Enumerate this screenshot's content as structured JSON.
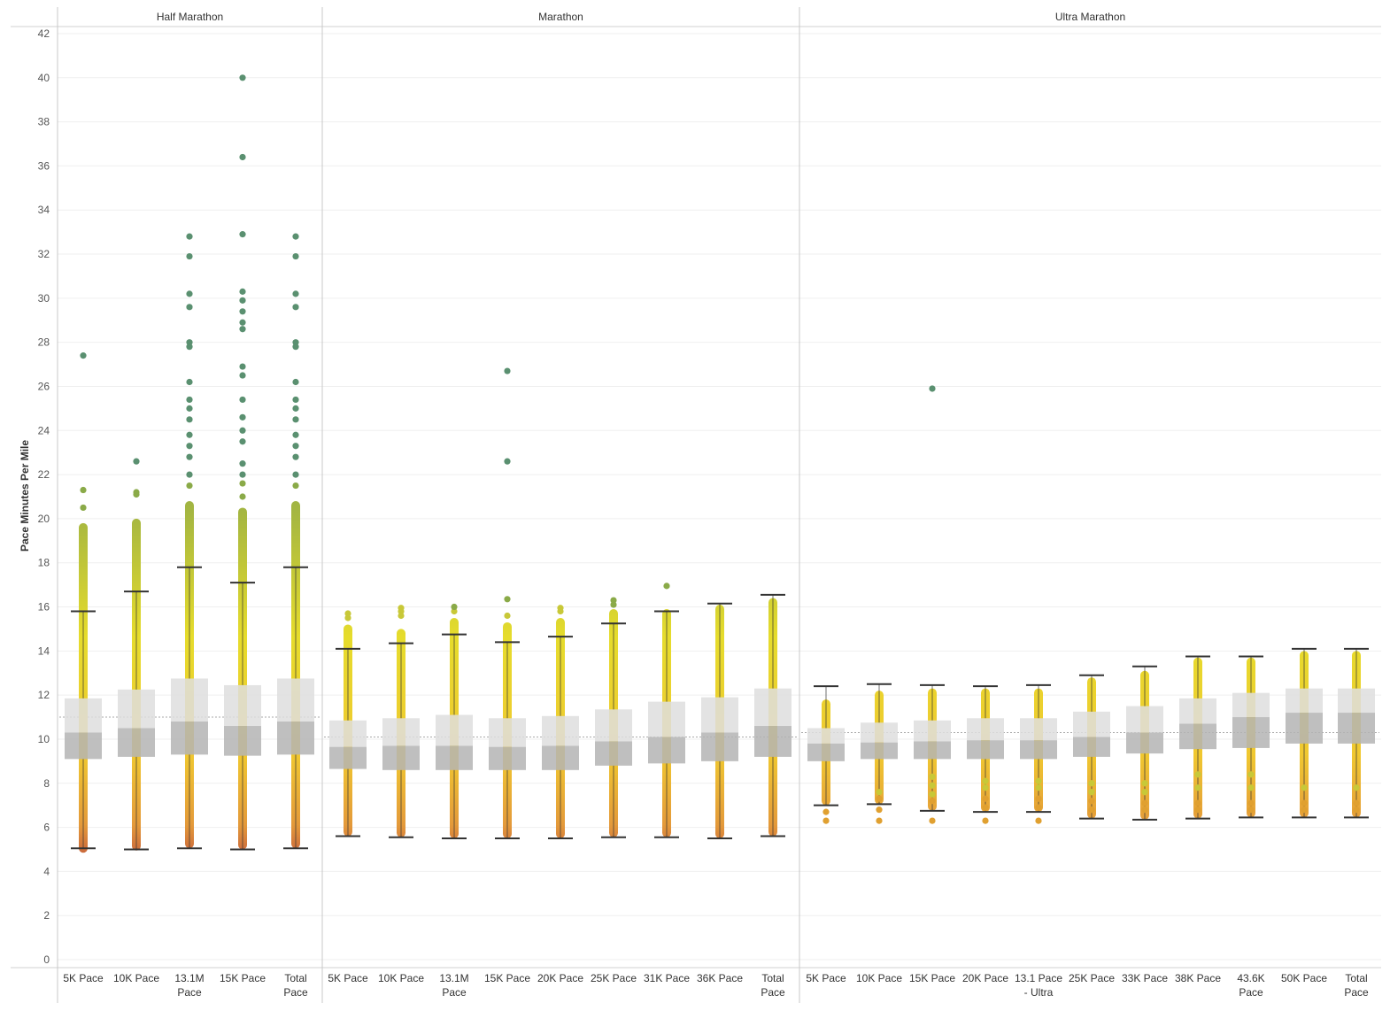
{
  "chart_data": {
    "type": "box",
    "ylabel": "Pace Minutes Per Mile",
    "ylim": [
      0,
      42
    ],
    "yticks": [
      0,
      2,
      4,
      6,
      8,
      10,
      12,
      14,
      16,
      18,
      20,
      22,
      24,
      26,
      28,
      30,
      32,
      34,
      36,
      38,
      40,
      42
    ],
    "grid": true,
    "colors": {
      "box_upper": "#dedede",
      "box_lower": "#b4b4b4",
      "whisker": "#333333",
      "fast": "#e0a030",
      "mid": "#e8d830",
      "slow": "#5a9070"
    },
    "panels": [
      {
        "title": "Half Marathon",
        "reference_line": 11.0,
        "categories": [
          {
            "label": [
              "5K Pace"
            ],
            "whisker_low": 5.05,
            "q1": 9.1,
            "median": 10.3,
            "q3": 11.85,
            "whisker_high": 15.8,
            "dense_high": 19.8,
            "outliers": [
              20.5,
              21.3,
              27.4
            ],
            "min_point": 4.85
          },
          {
            "label": [
              "10K Pace"
            ],
            "whisker_low": 5.0,
            "q1": 9.2,
            "median": 10.5,
            "q3": 12.25,
            "whisker_high": 16.7,
            "dense_high": 20.0,
            "outliers": [
              21.1,
              21.2,
              22.6
            ],
            "min_point": 4.95
          },
          {
            "label": [
              "13.1M",
              "Pace"
            ],
            "whisker_low": 5.05,
            "q1": 9.3,
            "median": 10.8,
            "q3": 12.75,
            "whisker_high": 17.8,
            "dense_high": 20.8,
            "outliers": [
              21.5,
              22.0,
              22.8,
              23.3,
              23.8,
              24.5,
              25.0,
              25.4,
              26.2,
              27.8,
              28.0,
              29.6,
              30.2,
              31.9,
              32.8
            ],
            "min_point": 5.05
          },
          {
            "label": [
              "15K Pace"
            ],
            "whisker_low": 5.0,
            "q1": 9.25,
            "median": 10.6,
            "q3": 12.45,
            "whisker_high": 17.1,
            "dense_high": 20.5,
            "outliers": [
              21.0,
              21.6,
              22.0,
              22.5,
              23.5,
              24.0,
              24.6,
              25.4,
              26.5,
              26.9,
              28.6,
              28.9,
              29.4,
              29.9,
              30.3,
              32.9,
              36.4,
              40.0
            ],
            "min_point": 5.0
          },
          {
            "label": [
              "Total",
              "Pace"
            ],
            "whisker_low": 5.05,
            "q1": 9.3,
            "median": 10.8,
            "q3": 12.75,
            "whisker_high": 17.8,
            "dense_high": 20.8,
            "outliers": [
              21.5,
              22.0,
              22.8,
              23.3,
              23.8,
              24.5,
              25.0,
              25.4,
              26.2,
              27.8,
              28.0,
              29.6,
              30.2,
              31.9,
              32.8
            ],
            "min_point": 5.05
          }
        ]
      },
      {
        "title": "Marathon",
        "reference_line": 10.1,
        "categories": [
          {
            "label": [
              "5K Pace"
            ],
            "whisker_low": 5.6,
            "q1": 8.65,
            "median": 9.65,
            "q3": 10.85,
            "whisker_high": 14.1,
            "dense_high": 15.2,
            "outliers": [
              15.5,
              15.7
            ],
            "min_point": 5.6
          },
          {
            "label": [
              "10K Pace"
            ],
            "whisker_low": 5.55,
            "q1": 8.6,
            "median": 9.7,
            "q3": 10.95,
            "whisker_high": 14.35,
            "dense_high": 15.0,
            "outliers": [
              15.6,
              15.8,
              15.95
            ],
            "min_point": 5.55
          },
          {
            "label": [
              "13.1M",
              "Pace"
            ],
            "whisker_low": 5.5,
            "q1": 8.6,
            "median": 9.7,
            "q3": 11.1,
            "whisker_high": 14.75,
            "dense_high": 15.5,
            "outliers": [
              15.8,
              16.0
            ],
            "min_point": 5.5
          },
          {
            "label": [
              "15K Pace"
            ],
            "whisker_low": 5.5,
            "q1": 8.6,
            "median": 9.65,
            "q3": 10.95,
            "whisker_high": 14.4,
            "dense_high": 15.3,
            "outliers": [
              15.6,
              16.35,
              22.6,
              26.7
            ],
            "min_point": 5.5
          },
          {
            "label": [
              "20K Pace"
            ],
            "whisker_low": 5.5,
            "q1": 8.6,
            "median": 9.7,
            "q3": 11.05,
            "whisker_high": 14.65,
            "dense_high": 15.5,
            "outliers": [
              15.8,
              15.95
            ],
            "min_point": 5.5
          },
          {
            "label": [
              "25K Pace"
            ],
            "whisker_low": 5.55,
            "q1": 8.8,
            "median": 9.9,
            "q3": 11.35,
            "whisker_high": 15.25,
            "dense_high": 15.9,
            "outliers": [
              16.1,
              16.3
            ],
            "min_point": 5.55
          },
          {
            "label": [
              "31K Pace"
            ],
            "whisker_low": 5.55,
            "q1": 8.9,
            "median": 10.1,
            "q3": 11.7,
            "whisker_high": 15.8,
            "dense_high": 15.9,
            "outliers": [
              16.95
            ],
            "min_point": 5.55
          },
          {
            "label": [
              "36K Pace"
            ],
            "whisker_low": 5.5,
            "q1": 9.0,
            "median": 10.3,
            "q3": 11.9,
            "whisker_high": 16.15,
            "dense_high": 16.1,
            "outliers": [],
            "min_point": 5.5
          },
          {
            "label": [
              "Total",
              "Pace"
            ],
            "whisker_low": 5.6,
            "q1": 9.2,
            "median": 10.6,
            "q3": 12.3,
            "whisker_high": 16.55,
            "dense_high": 16.4,
            "outliers": [],
            "min_point": 5.6
          }
        ]
      },
      {
        "title": "Ultra Marathon",
        "reference_line": 10.3,
        "categories": [
          {
            "label": [
              "5K Pace"
            ],
            "whisker_low": 7.0,
            "q1": 9.0,
            "median": 9.8,
            "q3": 10.5,
            "whisker_high": 12.4,
            "dense_high": 11.8,
            "outliers": [
              6.3,
              6.7
            ],
            "min_point": 7.0
          },
          {
            "label": [
              "10K Pace"
            ],
            "whisker_low": 7.05,
            "q1": 9.1,
            "median": 9.85,
            "q3": 10.75,
            "whisker_high": 12.5,
            "dense_high": 12.2,
            "outliers": [
              6.3,
              6.8,
              7.3,
              7.6
            ],
            "min_point": 7.05
          },
          {
            "label": [
              "15K Pace"
            ],
            "whisker_low": 6.75,
            "q1": 9.1,
            "median": 9.9,
            "q3": 10.85,
            "whisker_high": 12.45,
            "dense_high": 12.3,
            "outliers": [
              6.3,
              7.2,
              7.5,
              7.9,
              8.3,
              25.9
            ],
            "min_point": 6.75
          },
          {
            "label": [
              "20K Pace"
            ],
            "whisker_low": 6.7,
            "q1": 9.1,
            "median": 9.95,
            "q3": 10.95,
            "whisker_high": 12.4,
            "dense_high": 12.3,
            "outliers": [
              6.3,
              6.9,
              7.3,
              7.8,
              8.1
            ],
            "min_point": 6.7
          },
          {
            "label": [
              "13.1 Pace",
              "- Ultra"
            ],
            "whisker_low": 6.7,
            "q1": 9.1,
            "median": 9.95,
            "q3": 10.95,
            "whisker_high": 12.45,
            "dense_high": 12.3,
            "outliers": [
              6.3,
              6.9,
              7.3,
              7.8,
              8.1
            ],
            "min_point": 6.7
          },
          {
            "label": [
              "25K Pace"
            ],
            "whisker_low": 6.4,
            "q1": 9.2,
            "median": 10.1,
            "q3": 11.25,
            "whisker_high": 12.9,
            "dense_high": 12.8,
            "outliers": [
              6.8,
              7.2,
              7.6,
              8.0
            ],
            "min_point": 6.4
          },
          {
            "label": [
              "33K Pace"
            ],
            "whisker_low": 6.35,
            "q1": 9.35,
            "median": 10.3,
            "q3": 11.5,
            "whisker_high": 13.3,
            "dense_high": 13.1,
            "outliers": [
              6.8,
              7.1,
              7.6,
              8.0
            ],
            "min_point": 6.35
          },
          {
            "label": [
              "38K Pace"
            ],
            "whisker_low": 6.4,
            "q1": 9.55,
            "median": 10.7,
            "q3": 11.85,
            "whisker_high": 13.75,
            "dense_high": 13.7,
            "outliers": [
              6.8,
              7.1,
              7.8,
              8.4
            ],
            "min_point": 6.4
          },
          {
            "label": [
              "43.6K",
              "Pace"
            ],
            "whisker_low": 6.45,
            "q1": 9.6,
            "median": 11.0,
            "q3": 12.1,
            "whisker_high": 13.75,
            "dense_high": 13.7,
            "outliers": [
              6.8,
              7.1,
              7.8,
              8.4
            ],
            "min_point": 6.45
          },
          {
            "label": [
              "50K Pace"
            ],
            "whisker_low": 6.45,
            "q1": 9.8,
            "median": 11.2,
            "q3": 12.3,
            "whisker_high": 14.1,
            "dense_high": 14.0,
            "outliers": [
              6.8,
              7.1,
              7.8
            ],
            "min_point": 6.45
          },
          {
            "label": [
              "Total",
              "Pace"
            ],
            "whisker_low": 6.45,
            "q1": 9.8,
            "median": 11.2,
            "q3": 12.3,
            "whisker_high": 14.1,
            "dense_high": 14.0,
            "outliers": [
              6.8,
              7.1,
              7.8
            ],
            "min_point": 6.45
          }
        ]
      }
    ]
  }
}
